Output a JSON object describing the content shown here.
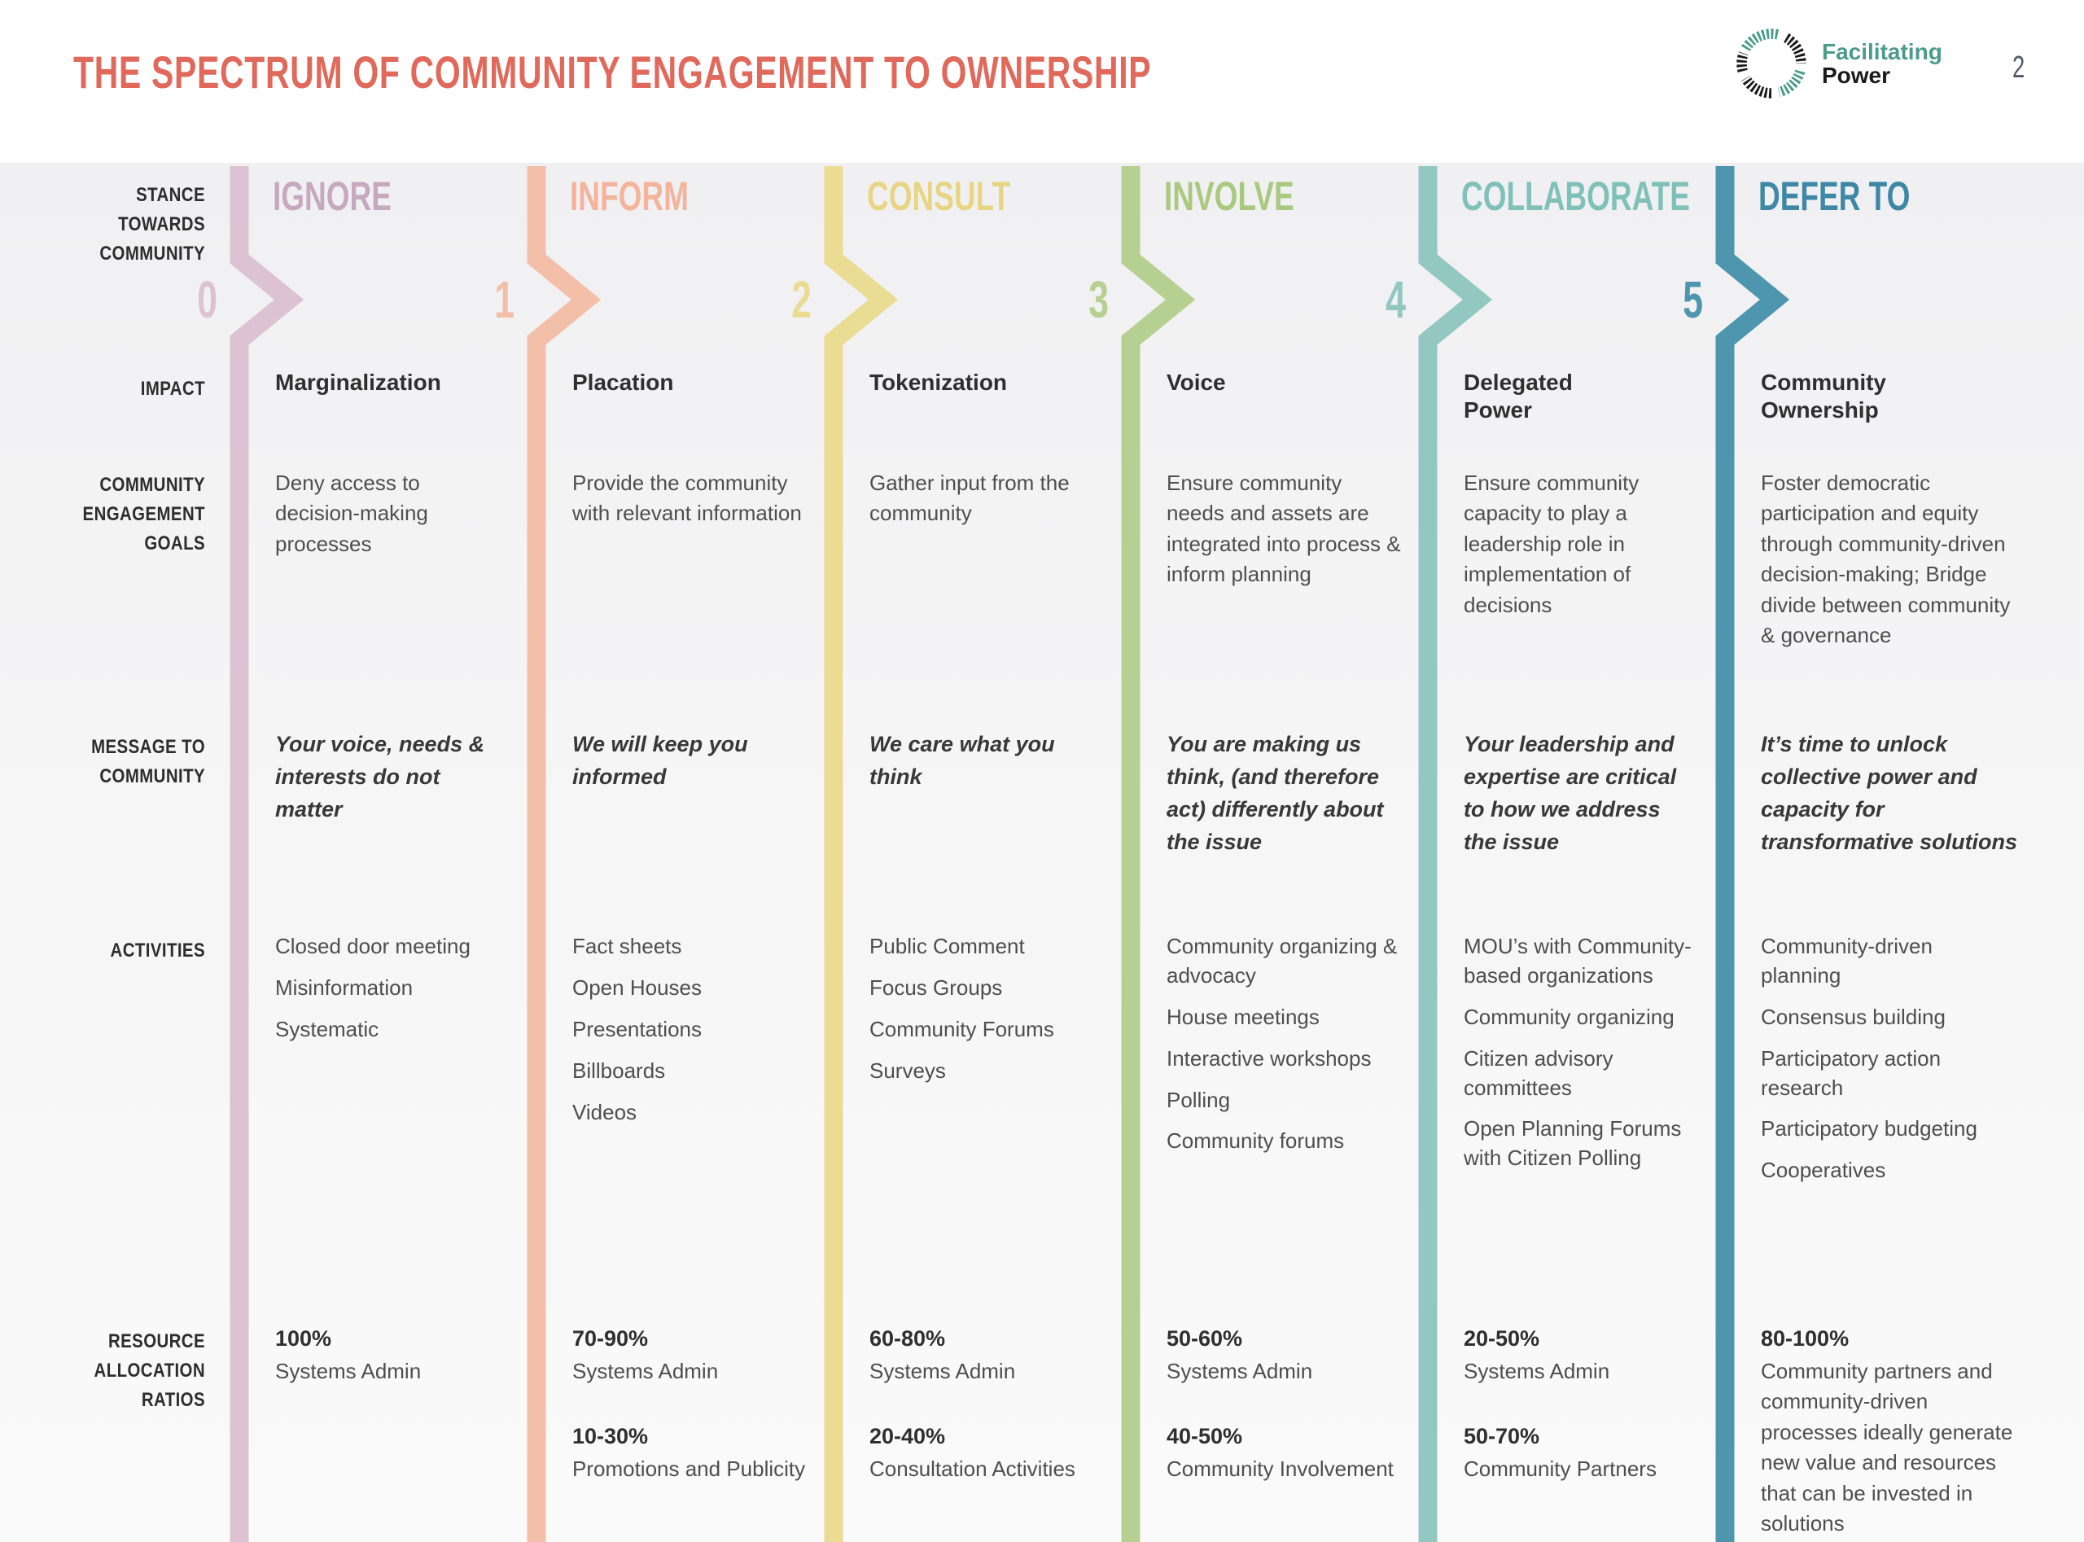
{
  "title": "THE SPECTRUM OF COMMUNITY ENGAGEMENT TO OWNERSHIP",
  "page": {
    "number": "2"
  },
  "logo": {
    "line1": "Facilitating",
    "line2": "Power"
  },
  "colors": {
    "title": "#E0695B",
    "logo_teal": "#4C9B8B",
    "logo_black": "#1A1A1A",
    "table_background": "#F2F2F3"
  },
  "row_labels": {
    "stance": "STANCE\nTOWARDS\nCOMMUNITY",
    "impact": "IMPACT",
    "goals": "COMMUNITY\nENGAGEMENT\nGOALS",
    "message": "MESSAGE TO\nCOMMUNITY",
    "activities": "ACTIVITIES",
    "resources": "RESOURCE\nALLOCATION\nRATIOS"
  },
  "columns": [
    {
      "header": "IGNORE",
      "number": "0",
      "bar_color": "#DCC2D2",
      "header_color": "#C7A9BF",
      "impact": "Marginalization",
      "goal": "Deny access to decision-making processes",
      "message": "Your voice, needs & interests do not matter",
      "activities": [
        "Closed door meeting",
        "Misinformation",
        "Systematic"
      ],
      "resources": [
        {
          "pct": "100%",
          "label": "Systems Admin"
        }
      ]
    },
    {
      "header": "INFORM",
      "number": "1",
      "bar_color": "#F4BFA9",
      "header_color": "#F3B49B",
      "impact": "Placation",
      "goal": "Provide the community with relevant information",
      "message": "We will keep you informed",
      "activities": [
        "Fact sheets",
        "Open Houses",
        "Presentations",
        "Billboards",
        "Videos"
      ],
      "resources": [
        {
          "pct": "70-90%",
          "label": "Systems Admin"
        },
        {
          "pct": "10-30%",
          "label": "Promotions and Publicity"
        }
      ]
    },
    {
      "header": "CONSULT",
      "number": "2",
      "bar_color": "#EBDC93",
      "header_color": "#E7D584",
      "impact": "Tokenization",
      "goal": "Gather input from the community",
      "message": "We care what you think",
      "activities": [
        "Public Comment",
        "Focus Groups",
        "Community Forums",
        "Surveys"
      ],
      "resources": [
        {
          "pct": "60-80%",
          "label": "Systems Admin"
        },
        {
          "pct": "20-40%",
          "label": "Consultation Activities"
        }
      ]
    },
    {
      "header": "INVOLVE",
      "number": "3",
      "bar_color": "#B6D092",
      "header_color": "#A9C97F",
      "impact": "Voice",
      "goal": "Ensure community needs and assets are integrated into process & inform planning",
      "message": "You are making us think, (and therefore act) differently about the issue",
      "activities": [
        "Community organizing & advocacy",
        "House meetings",
        "Interactive workshops",
        "Polling",
        "Community forums"
      ],
      "resources": [
        {
          "pct": "50-60%",
          "label": "Systems Admin"
        },
        {
          "pct": "40-50%",
          "label": "Community Involvement"
        }
      ]
    },
    {
      "header": "COLLABORATE",
      "number": "4",
      "bar_color": "#92C8C1",
      "header_color": "#7FC0B8",
      "impact": "Delegated\nPower",
      "goal": "Ensure community capacity to play a leadership role in implementation of decisions",
      "message": "Your leadership and expertise are critical to how we address the issue",
      "activities": [
        "MOU’s with Community-based organizations",
        "Community organizing",
        "Citizen advisory committees",
        "Open Planning Forums with Citizen Polling"
      ],
      "resources": [
        {
          "pct": "20-50%",
          "label": "Systems Admin"
        },
        {
          "pct": "50-70%",
          "label": "Community Partners"
        }
      ]
    },
    {
      "header": "DEFER TO",
      "number": "5",
      "bar_color": "#4D96AE",
      "header_color": "#3E88A6",
      "impact": "Community\nOwnership",
      "goal": "Foster democratic participation and equity through community-driven decision-making; Bridge divide between community & governance",
      "message": "It’s time to unlock collective power and capacity for transformative solutions",
      "activities": [
        "Community-driven planning",
        "Consensus building",
        "Participatory action research",
        "Participatory budgeting",
        "Cooperatives"
      ],
      "resources": [
        {
          "pct": "80-100%",
          "label": "Community partners and community-driven processes ideally generate new value and resources that can be invested in solutions"
        }
      ]
    }
  ]
}
